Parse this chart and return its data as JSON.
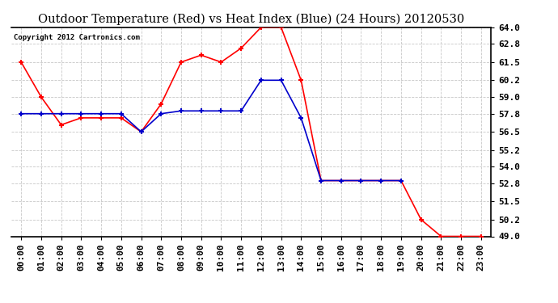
{
  "title": "Outdoor Temperature (Red) vs Heat Index (Blue) (24 Hours) 20120530",
  "copyright_text": "Copyright 2012 Cartronics.com",
  "x_labels": [
    "00:00",
    "01:00",
    "02:00",
    "03:00",
    "04:00",
    "05:00",
    "06:00",
    "07:00",
    "08:00",
    "09:00",
    "10:00",
    "11:00",
    "12:00",
    "13:00",
    "14:00",
    "15:00",
    "16:00",
    "17:00",
    "18:00",
    "19:00",
    "20:00",
    "21:00",
    "22:00",
    "23:00"
  ],
  "red_temp": [
    61.5,
    59.0,
    57.0,
    57.5,
    57.5,
    57.5,
    56.5,
    58.5,
    61.5,
    62.0,
    61.5,
    62.5,
    64.0,
    64.0,
    60.2,
    53.0,
    53.0,
    53.0,
    53.0,
    53.0,
    50.2,
    49.0,
    49.0,
    49.0
  ],
  "blue_heat": [
    57.8,
    57.8,
    57.8,
    57.8,
    57.8,
    57.8,
    56.5,
    57.8,
    58.0,
    58.0,
    58.0,
    58.0,
    60.2,
    60.2,
    57.5,
    53.0,
    53.0,
    53.0,
    53.0,
    53.0,
    null,
    null,
    null,
    null
  ],
  "ylim": [
    49.0,
    64.0
  ],
  "yticks": [
    49.0,
    50.2,
    51.5,
    52.8,
    54.0,
    55.2,
    56.5,
    57.8,
    59.0,
    60.2,
    61.5,
    62.8,
    64.0
  ],
  "background_color": "#ffffff",
  "plot_bg_color": "#ffffff",
  "grid_color": "#c8c8c8",
  "red_color": "#ff0000",
  "blue_color": "#0000cc",
  "title_fontsize": 10.5,
  "copyright_fontsize": 6.5,
  "tick_fontsize": 8,
  "ylabel_fontsize": 8
}
